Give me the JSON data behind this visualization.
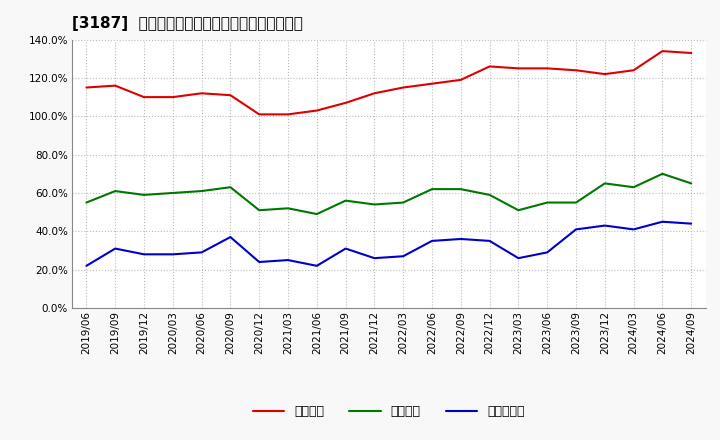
{
  "title": "[3187]  流動比率、当座比率、現預金比率の推移",
  "x_labels": [
    "2019/06",
    "2019/09",
    "2019/12",
    "2020/03",
    "2020/06",
    "2020/09",
    "2020/12",
    "2021/03",
    "2021/06",
    "2021/09",
    "2021/12",
    "2022/03",
    "2022/06",
    "2022/09",
    "2022/12",
    "2023/03",
    "2023/06",
    "2023/09",
    "2023/12",
    "2024/03",
    "2024/06",
    "2024/09"
  ],
  "ryudo": [
    115,
    116,
    110,
    110,
    112,
    111,
    101,
    101,
    103,
    107,
    112,
    115,
    117,
    119,
    126,
    125,
    125,
    124,
    122,
    124,
    134,
    133
  ],
  "toza": [
    55,
    61,
    59,
    60,
    61,
    63,
    51,
    52,
    49,
    56,
    54,
    55,
    62,
    62,
    59,
    51,
    55,
    55,
    65,
    63,
    70,
    65
  ],
  "genyo": [
    22,
    31,
    28,
    28,
    29,
    37,
    24,
    25,
    22,
    31,
    26,
    27,
    35,
    36,
    35,
    26,
    29,
    41,
    43,
    41,
    45,
    44
  ],
  "legend": [
    "流動比率",
    "当座比率",
    "現預金比率"
  ],
  "line_colors": [
    "#dd0000",
    "#007700",
    "#0000cc"
  ],
  "ylim": [
    0,
    140
  ],
  "yticks": [
    0,
    20,
    40,
    60,
    80,
    100,
    120,
    140
  ],
  "fig_bg_color": "#f8f8f8",
  "plot_bg_color": "#ffffff",
  "grid_color": "#bbbbbb",
  "border_color": "#888888",
  "title_fontsize": 11,
  "tick_fontsize": 7.5,
  "legend_fontsize": 9
}
